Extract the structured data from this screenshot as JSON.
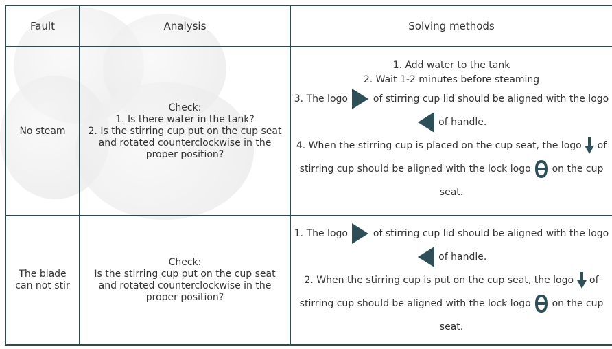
{
  "table": {
    "header": [
      "Fault",
      "Analysis",
      "Solving methods"
    ],
    "rows": [
      {
        "fault": "No steam",
        "analysis": [
          "Check:",
          "1. Is there water in the tank?",
          "2. Is the stirring cup put on the cup seat and rotated counterclockwise in the proper position?"
        ],
        "solutions": [
          [
            "1. Add water to the tank"
          ],
          [
            "2. Wait 1-2 minutes before steaming"
          ],
          [
            "3. The logo",
            "of stirring cup lid should be aligned with the logo",
            "of handle."
          ],
          [
            "4. When the stirring cup is placed on the cup seat, the logo",
            "of stirring cup should be aligned with the lock logo",
            "on the cup seat."
          ]
        ]
      },
      {
        "fault": "The blade can not stir",
        "analysis": [
          "Check:",
          "Is the stirring cup put on the cup seat and rotated counterclockwise in the proper position?"
        ],
        "solutions": [
          [
            "1. The logo",
            "of stirring cup lid should be aligned with the logo",
            "of handle."
          ],
          [
            "2. When the stirring cup is put on the cup seat, the logo",
            "of stirring cup should be aligned with the lock logo",
            "on the cup seat."
          ]
        ]
      }
    ]
  }
}
